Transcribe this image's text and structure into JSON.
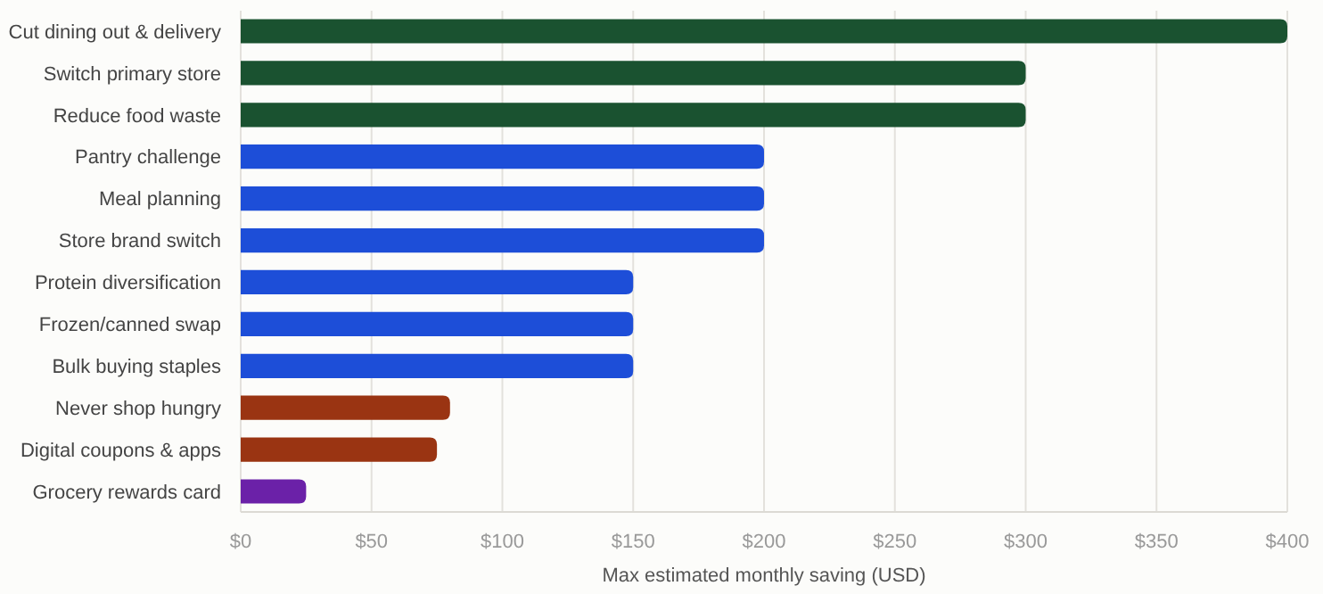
{
  "chart_data": {
    "type": "bar",
    "orientation": "horizontal",
    "xlabel": "Max estimated monthly saving (USD)",
    "categories": [
      "Cut dining out & delivery",
      "Switch primary store",
      "Reduce food waste",
      "Pantry challenge",
      "Meal planning",
      "Store brand switch",
      "Protein diversification",
      "Frozen/canned swap",
      "Bulk buying staples",
      "Never shop hungry",
      "Digital coupons & apps",
      "Grocery rewards card"
    ],
    "values": [
      400,
      300,
      300,
      200,
      200,
      200,
      150,
      150,
      150,
      80,
      75,
      25
    ],
    "colors": [
      "#1a5230",
      "#1a5230",
      "#1a5230",
      "#1d4ed8",
      "#1d4ed8",
      "#1d4ed8",
      "#1d4ed8",
      "#1d4ed8",
      "#1d4ed8",
      "#9a3412",
      "#9a3412",
      "#6b21a8"
    ],
    "xlim": [
      0,
      400
    ],
    "xticks": [
      {
        "value": 0,
        "label": "$0"
      },
      {
        "value": 50,
        "label": "$50"
      },
      {
        "value": 100,
        "label": "$100"
      },
      {
        "value": 150,
        "label": "$150"
      },
      {
        "value": 200,
        "label": "$200"
      },
      {
        "value": 250,
        "label": "$250"
      },
      {
        "value": 300,
        "label": "$300"
      },
      {
        "value": 350,
        "label": "$350"
      },
      {
        "value": 400,
        "label": "$400"
      }
    ],
    "grid": "x"
  }
}
